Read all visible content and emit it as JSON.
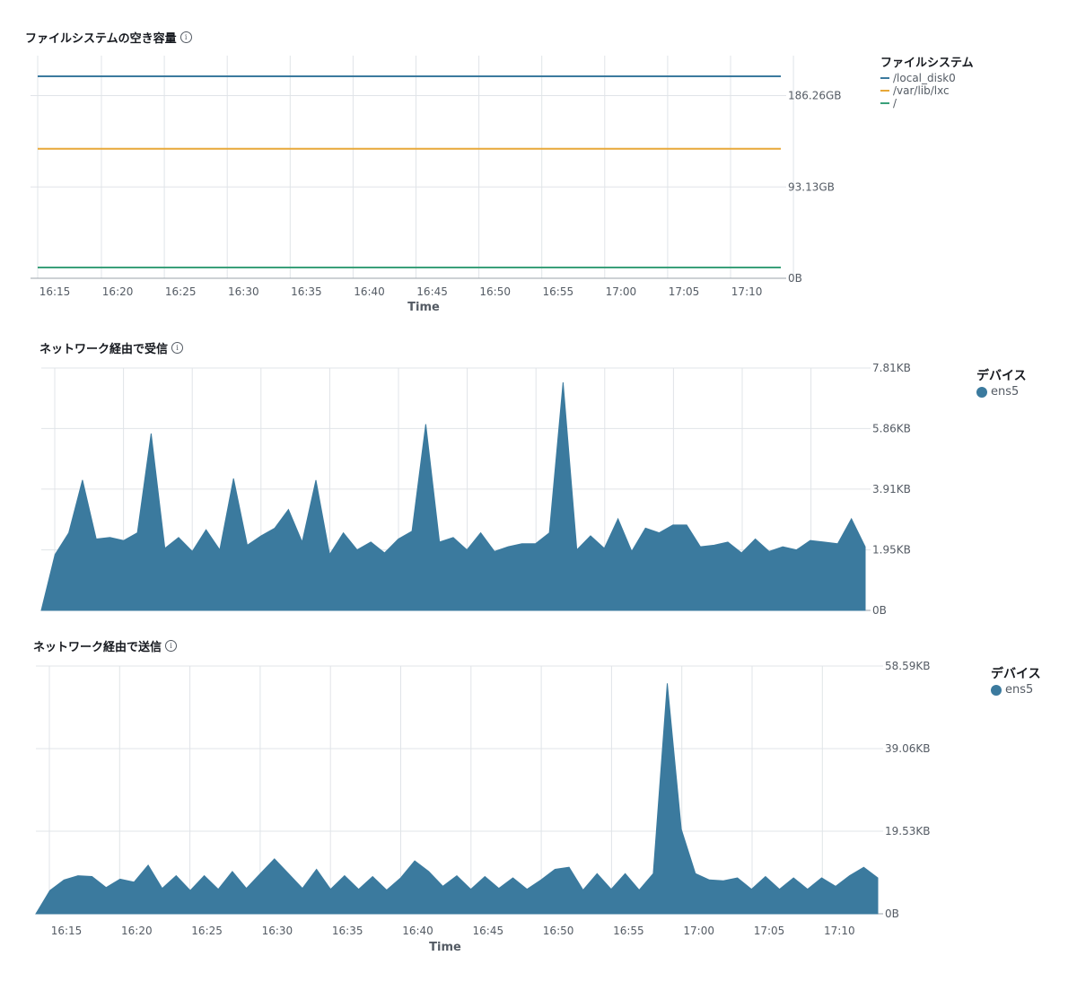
{
  "chart_data": [
    {
      "type": "line",
      "title": "ファイルシステムの空き容量",
      "xlabel": "Time",
      "x_ticks": [
        "16:15",
        "16:20",
        "16:25",
        "16:30",
        "16:35",
        "16:40",
        "16:45",
        "16:50",
        "16:55",
        "17:00",
        "17:05",
        "17:10"
      ],
      "y_ticks": [
        "186.26GB",
        "93.13GB",
        "0B"
      ],
      "ylim": [
        0,
        227
      ],
      "legend_title": "ファイルシステム",
      "legend_position": "right",
      "series": [
        {
          "name": "/local_disk0",
          "color": "#3b7a9e",
          "value": 206
        },
        {
          "name": "/var/lib/lxc",
          "color": "#e8a838",
          "value": 132
        },
        {
          "name": "/",
          "color": "#3aa07a",
          "value": 11
        }
      ]
    },
    {
      "type": "area",
      "title": "ネットワーク経由で受信",
      "xlabel": "",
      "y_ticks": [
        "7.81KB",
        "5.86KB",
        "3.91KB",
        "1.95KB",
        "0B"
      ],
      "ylim": [
        0,
        7.81
      ],
      "legend_title": "デバイス",
      "legend_position": "right",
      "series": [
        {
          "name": "ens5",
          "color": "#3b7a9e",
          "values": [
            0,
            1.8,
            2.5,
            4.2,
            2.3,
            2.35,
            2.25,
            2.5,
            5.7,
            2.0,
            2.35,
            1.9,
            2.6,
            1.95,
            4.25,
            2.1,
            2.4,
            2.65,
            3.25,
            2.2,
            4.2,
            1.8,
            2.5,
            1.95,
            2.2,
            1.85,
            2.3,
            2.55,
            6.0,
            2.2,
            2.35,
            1.95,
            2.5,
            1.9,
            2.05,
            2.15,
            2.15,
            2.5,
            7.35,
            1.95,
            2.4,
            2.0,
            2.95,
            1.9,
            2.65,
            2.5,
            2.75,
            2.75,
            2.05,
            2.1,
            2.2,
            1.85,
            2.3,
            1.9,
            2.05,
            1.95,
            2.25,
            2.2,
            2.15,
            2.95,
            2.05
          ]
        }
      ]
    },
    {
      "type": "area",
      "title": "ネットワーク経由で送信",
      "xlabel": "Time",
      "x_ticks": [
        "16:15",
        "16:20",
        "16:25",
        "16:30",
        "16:35",
        "16:40",
        "16:45",
        "16:50",
        "16:55",
        "17:00",
        "17:05",
        "17:10"
      ],
      "y_ticks": [
        "58.59KB",
        "39.06KB",
        "19.53KB",
        "0B"
      ],
      "ylim": [
        0,
        58.59
      ],
      "legend_title": "デバイス",
      "legend_position": "right",
      "series": [
        {
          "name": "ens5",
          "color": "#3b7a9e",
          "values": [
            0,
            5.5,
            8.0,
            9.0,
            8.8,
            6.2,
            8.2,
            7.5,
            11.5,
            6.0,
            9.0,
            5.5,
            9.0,
            5.8,
            10.0,
            6.0,
            9.5,
            13.0,
            9.5,
            6.0,
            10.5,
            5.8,
            9.0,
            5.8,
            8.8,
            5.6,
            8.5,
            12.5,
            10.0,
            6.5,
            9.0,
            5.8,
            8.8,
            6.0,
            8.5,
            5.8,
            8.0,
            10.5,
            11.0,
            5.6,
            9.5,
            5.8,
            9.5,
            5.6,
            9.5,
            54.5,
            20.0,
            9.5,
            8.0,
            7.8,
            8.5,
            5.8,
            8.8,
            5.8,
            8.5,
            5.8,
            8.5,
            6.5,
            9.0,
            11.0,
            8.5
          ]
        }
      ]
    }
  ]
}
